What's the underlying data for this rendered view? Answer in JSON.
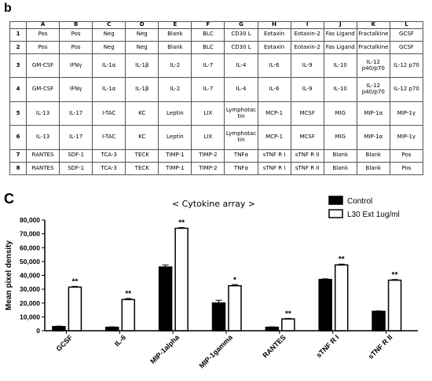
{
  "panel_b_label": "b",
  "panel_c_label": "C",
  "array_table": {
    "corner": "",
    "columns": [
      "A",
      "B",
      "C",
      "D",
      "E",
      "F",
      "G",
      "H",
      "I",
      "J",
      "K",
      "L"
    ],
    "rows": [
      {
        "id": "1",
        "cells": [
          "Pos",
          "Pos",
          "Neg",
          "Neg",
          "Blank",
          "BLC",
          "CD30 L",
          "Eotaxin",
          "Eotaxin-2",
          "Fas Ligand",
          "Fractalkine",
          "GCSF"
        ]
      },
      {
        "id": "2",
        "cells": [
          "Pos",
          "Pos",
          "Neg",
          "Neg",
          "Blank",
          "BLC",
          "CD30 L",
          "Eotaxin",
          "Eotaxin-2",
          "Fas Ligand",
          "Fractalkine",
          "GCSF"
        ]
      },
      {
        "id": "3",
        "cells": [
          "GM-CSF",
          "IFNγ",
          "IL-1α",
          "IL-1β",
          "IL-2",
          "IL-7",
          "IL-4",
          "IL-6",
          "IL-9",
          "IL-10",
          "IL-12 p40/p70",
          "IL-12 p70"
        ]
      },
      {
        "id": "4",
        "cells": [
          "GM-CSF",
          "IFNγ",
          "IL-1α",
          "IL-1β",
          "IL-2",
          "IL-7",
          "IL-4",
          "IL-6",
          "IL-9",
          "IL-10",
          "IL-12 p40/p70",
          "IL-12 p70"
        ]
      },
      {
        "id": "5",
        "cells": [
          "IL-13",
          "IL-17",
          "I-TAC",
          "KC",
          "Leptin",
          "LIX",
          "Lymphotac tin",
          "MCP-1",
          "MCSF",
          "MIG",
          "MIP-1α",
          "MIP-1γ"
        ]
      },
      {
        "id": "6",
        "cells": [
          "IL-13",
          "IL-17",
          "I-TAC",
          "KC",
          "Leptin",
          "LIX",
          "Lymphotac tin",
          "MCP-1",
          "MCSF",
          "MIG",
          "MIP-1α",
          "MIP-1γ"
        ]
      },
      {
        "id": "7",
        "cells": [
          "RANTES",
          "SDF-1",
          "TCA-3",
          "TECK",
          "TIMP-1",
          "TIMP-2",
          "TNFα",
          "sTNF R I",
          "sTNF R II",
          "Blank",
          "Blank",
          "Pos"
        ]
      },
      {
        "id": "8",
        "cells": [
          "RANTES",
          "SDF-1",
          "TCA-3",
          "TECK",
          "TIMP-1",
          "TIMP-2",
          "TNFα",
          "sTNF R I",
          "sTNF R II",
          "Blank",
          "Blank",
          "Pos"
        ]
      }
    ]
  },
  "chart_data": {
    "type": "bar",
    "title": "< Cytokine array >",
    "ylabel": "Mean pixel density",
    "xlabel": "",
    "ylim": [
      0,
      80000
    ],
    "yticks": [
      0,
      10000,
      20000,
      30000,
      40000,
      50000,
      60000,
      70000,
      80000
    ],
    "ytick_labels": [
      "0",
      "10,000",
      "20,000",
      "30,000",
      "40,000",
      "50,000",
      "60,000",
      "70,000",
      "80,000"
    ],
    "categories": [
      "GCSF",
      "IL-6",
      "MIP-1alpha",
      "MIP-1gamma",
      "RANTES",
      "sTNF R I",
      "sTNF R II"
    ],
    "series": [
      {
        "name": "Control",
        "color": "#000000",
        "values": [
          3000,
          2500,
          46000,
          20000,
          2500,
          37000,
          14000
        ],
        "errors": [
          300,
          300,
          1500,
          2000,
          300,
          500,
          300
        ]
      },
      {
        "name": "L30 Ext 1ug/ml",
        "color": "#ffffff",
        "values": [
          31500,
          22500,
          74000,
          32500,
          8500,
          47500,
          36500
        ],
        "errors": [
          500,
          800,
          500,
          800,
          400,
          600,
          500
        ]
      }
    ],
    "significance": [
      "**",
      "**",
      "**",
      "*",
      "**",
      "**",
      "**"
    ],
    "legend_position": "top-right"
  }
}
